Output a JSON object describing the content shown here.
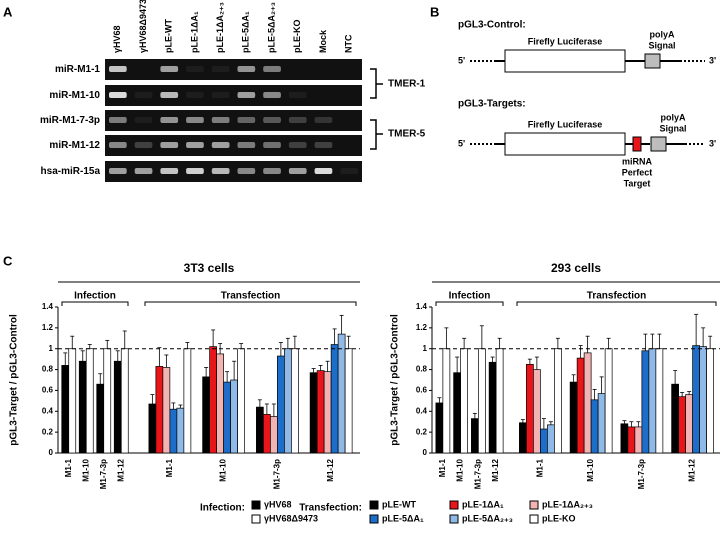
{
  "panel_a": {
    "label": "A",
    "lanes": [
      "γHV68",
      "γHV68Δ9473",
      "pLE-WT",
      "pLE-1ΔA₁",
      "pLE-1ΔA₂₊₃",
      "pLE-5ΔA₁",
      "pLE-5ΔA₂₊₃",
      "pLE-KO",
      "Mock",
      "NTC"
    ],
    "rows": [
      "miR-M1-1",
      "miR-M1-10",
      "miR-M1-7-3p",
      "miR-M1-12",
      "hsa-miR-15a"
    ],
    "brackets": [
      "TMER-1",
      "TMER-5"
    ]
  },
  "panel_b": {
    "label": "B",
    "control": {
      "title": "pGL3-Control:",
      "gene": "Firefly Luciferase",
      "polya": [
        "polyA",
        "Signal"
      ],
      "five": "5'",
      "three": "3'"
    },
    "targets": {
      "title": "pGL3-Targets:",
      "gene": "Firefly Luciferase",
      "polya": [
        "polyA",
        "Signal"
      ],
      "target": [
        "miRNA",
        "Perfect",
        "Target"
      ],
      "five": "5'",
      "three": "3'"
    }
  },
  "panel_c": {
    "label": "C",
    "legend": {
      "infection": {
        "title": "Infection:",
        "items": [
          {
            "name": "γHV68",
            "color": "#000000"
          },
          {
            "name": "γHV68Δ9473",
            "color": "#ffffff"
          }
        ]
      },
      "transfection": {
        "title": "Transfection:",
        "items": [
          {
            "name": "pLE-WT",
            "color": "#000000"
          },
          {
            "name": "pLE-1ΔA₁",
            "color": "#e8151b"
          },
          {
            "name": "pLE-1ΔA₂₊₃",
            "color": "#f2b3b3"
          },
          {
            "name": "pLE-5ΔA₁",
            "color": "#1c6ec8"
          },
          {
            "name": "pLE-5ΔA₂₊₃",
            "color": "#8fb9e6"
          },
          {
            "name": "pLE-KO",
            "color": "#ffffff"
          }
        ]
      }
    }
  },
  "chart_data": [
    {
      "type": "bar",
      "title": "3T3 cells",
      "ylabel": "pGL3-Target / pGL3-Control",
      "ylim": [
        0,
        1.4
      ],
      "yticks": [
        0,
        0.2,
        0.4,
        0.6,
        0.8,
        1,
        1.2,
        1.4
      ],
      "reference_line": 1,
      "infection": {
        "label": "Infection",
        "categories": [
          "M1-1",
          "M1-10",
          "M1-7-3p",
          "M1-12"
        ],
        "series": [
          {
            "values": [
              0.84,
              0.88,
              0.66,
              0.88
            ],
            "errors": [
              0.12,
              0.1,
              0.1,
              0.1
            ]
          },
          {
            "values": [
              1.0,
              1.0,
              1.0,
              1.0
            ],
            "errors": [
              0.12,
              0.04,
              0.08,
              0.17
            ]
          }
        ]
      },
      "transfection": {
        "label": "Transfection",
        "categories": [
          "M1-1",
          "M1-10",
          "M1-7-3p",
          "M1-12"
        ],
        "series": [
          {
            "values": [
              0.47,
              0.73,
              0.44,
              0.77
            ],
            "errors": [
              0.09,
              0.09,
              0.07,
              0.04
            ]
          },
          {
            "values": [
              0.83,
              1.02,
              0.37,
              0.79
            ],
            "errors": [
              0.18,
              0.16,
              0.1,
              0.05
            ]
          },
          {
            "values": [
              0.82,
              0.95,
              0.35,
              0.78
            ],
            "errors": [
              0.12,
              0.1,
              0.12,
              0.1
            ]
          },
          {
            "values": [
              0.42,
              0.68,
              0.93,
              1.04
            ],
            "errors": [
              0.06,
              0.1,
              0.13,
              0.15
            ]
          },
          {
            "values": [
              0.43,
              0.7,
              1.0,
              1.14
            ],
            "errors": [
              0.03,
              0.18,
              0.1,
              0.18
            ]
          },
          {
            "values": [
              1.0,
              1.0,
              1.0,
              1.0
            ],
            "errors": [
              0.06,
              0.05,
              0.12,
              0.12
            ]
          }
        ]
      }
    },
    {
      "type": "bar",
      "title": "293 cells",
      "ylabel": "pGL3-Target / pGL3-Control",
      "ylim": [
        0,
        1.4
      ],
      "yticks": [
        0,
        0.2,
        0.4,
        0.6,
        0.8,
        1,
        1.2,
        1.4
      ],
      "reference_line": 1,
      "infection": {
        "label": "Infection",
        "categories": [
          "M1-1",
          "M1-10",
          "M1-7-3p",
          "M1-12"
        ],
        "series": [
          {
            "values": [
              0.48,
              0.77,
              0.33,
              0.87
            ],
            "errors": [
              0.05,
              0.15,
              0.05,
              0.05
            ]
          },
          {
            "values": [
              1.0,
              1.0,
              1.0,
              1.0
            ],
            "errors": [
              0.2,
              0.1,
              0.22,
              0.1
            ]
          }
        ]
      },
      "transfection": {
        "label": "Transfection",
        "categories": [
          "M1-1",
          "M1-10",
          "M1-7-3p",
          "M1-12"
        ],
        "series": [
          {
            "values": [
              0.29,
              0.68,
              0.28,
              0.66
            ],
            "errors": [
              0.03,
              0.07,
              0.03,
              0.13
            ]
          },
          {
            "values": [
              0.85,
              0.91,
              0.25,
              0.54
            ],
            "errors": [
              0.05,
              0.12,
              0.05,
              0.04
            ]
          },
          {
            "values": [
              0.8,
              0.96,
              0.25,
              0.56
            ],
            "errors": [
              0.12,
              0.16,
              0.05,
              0.03
            ]
          },
          {
            "values": [
              0.23,
              0.51,
              0.98,
              1.03
            ],
            "errors": [
              0.1,
              0.1,
              0.16,
              0.3
            ]
          },
          {
            "values": [
              0.27,
              0.57,
              1.0,
              1.02
            ],
            "errors": [
              0.03,
              0.16,
              0.14,
              0.18
            ]
          },
          {
            "values": [
              1.0,
              1.0,
              1.0,
              1.0
            ],
            "errors": [
              0.1,
              0.1,
              0.14,
              0.12
            ]
          }
        ]
      }
    }
  ]
}
